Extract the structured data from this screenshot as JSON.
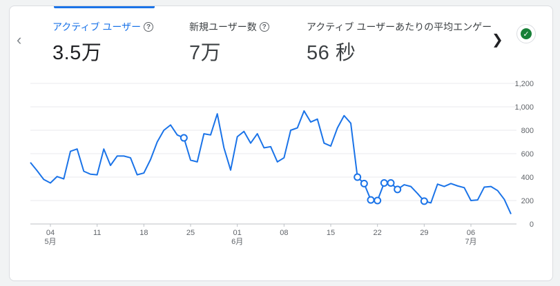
{
  "metrics": [
    {
      "label": "アクティブ ユーザー",
      "value": "3.5万",
      "active": true
    },
    {
      "label": "新規ユーザー数",
      "value": "7万",
      "active": false
    },
    {
      "label": "アクティブ ユーザーあたりの平均エンゲー",
      "value": "56 秒",
      "active": false
    }
  ],
  "icons": {
    "prev": "chevron-left-icon",
    "next": "chevron-right-icon",
    "help": "help-circle-icon",
    "status": "check-circle-icon"
  },
  "colors": {
    "line": "#1a73e8",
    "status": "#188038"
  },
  "chart_data": {
    "type": "line",
    "ylim": [
      0,
      1200
    ],
    "yticks": [
      0,
      200,
      400,
      600,
      800,
      1000,
      1200
    ],
    "ytick_labels": [
      "0",
      "200",
      "400",
      "600",
      "800",
      "1,000",
      "1,200"
    ],
    "xticks": [
      {
        "day": 3,
        "label": "04",
        "sub": "5月"
      },
      {
        "day": 10,
        "label": "11",
        "sub": ""
      },
      {
        "day": 17,
        "label": "18",
        "sub": ""
      },
      {
        "day": 24,
        "label": "25",
        "sub": ""
      },
      {
        "day": 31,
        "label": "01",
        "sub": "6月"
      },
      {
        "day": 38,
        "label": "08",
        "sub": ""
      },
      {
        "day": 45,
        "label": "15",
        "sub": ""
      },
      {
        "day": 52,
        "label": "22",
        "sub": ""
      },
      {
        "day": 59,
        "label": "29",
        "sub": ""
      },
      {
        "day": 66,
        "label": "06",
        "sub": "7月"
      }
    ],
    "values": [
      525,
      455,
      380,
      350,
      405,
      385,
      620,
      640,
      450,
      425,
      420,
      640,
      500,
      580,
      580,
      565,
      420,
      435,
      550,
      700,
      800,
      845,
      760,
      735,
      545,
      530,
      770,
      760,
      940,
      650,
      460,
      745,
      790,
      690,
      770,
      650,
      660,
      530,
      565,
      800,
      820,
      965,
      870,
      895,
      690,
      665,
      820,
      925,
      860,
      400,
      345,
      205,
      200,
      350,
      350,
      295,
      335,
      320,
      260,
      195,
      180,
      340,
      320,
      345,
      325,
      310,
      200,
      205,
      315,
      320,
      285,
      210,
      85
    ],
    "markers": [
      23,
      49,
      50,
      51,
      52,
      53,
      54,
      55,
      59
    ]
  }
}
